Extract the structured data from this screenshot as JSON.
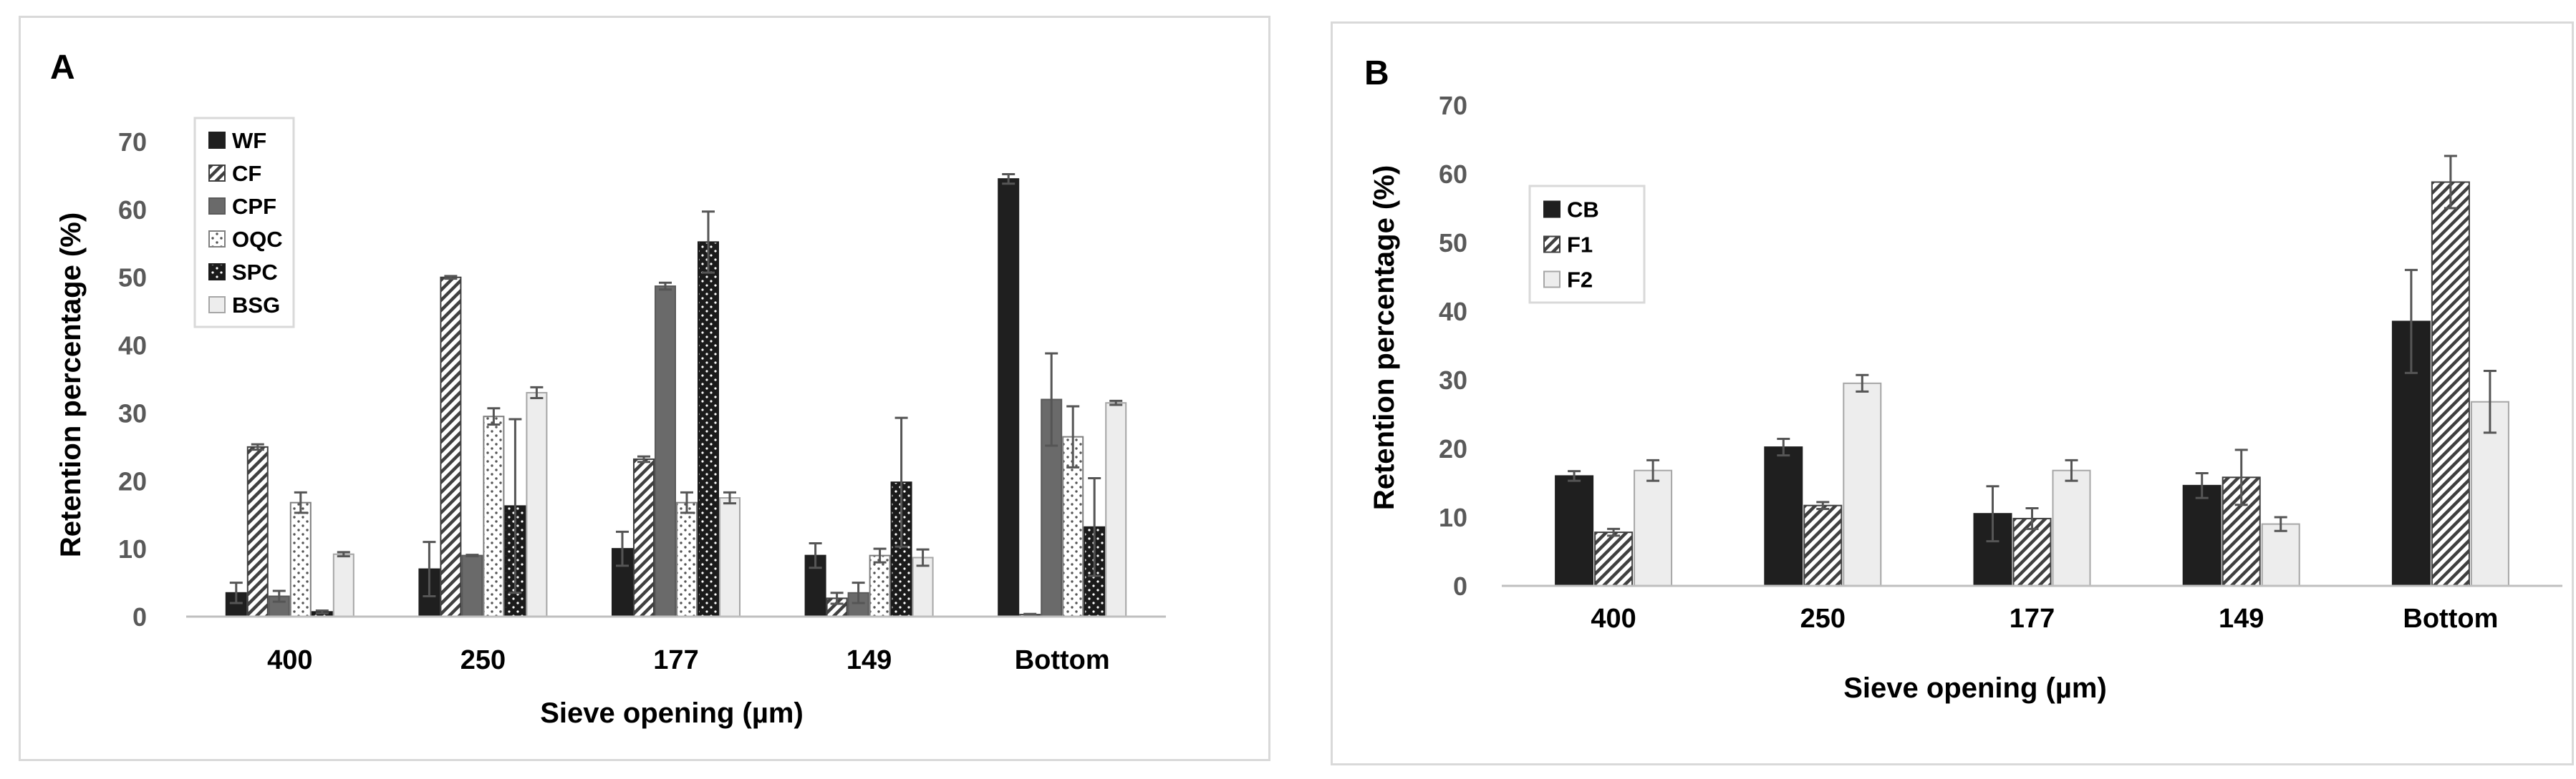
{
  "chart_data": [
    {
      "panel": "A",
      "type": "bar",
      "title": "",
      "xlabel": "Sieve opening (µm)",
      "ylabel": "Retention percentage (%)",
      "ylim": [
        0,
        70
      ],
      "yticks": [
        0,
        10,
        20,
        30,
        40,
        50,
        60,
        70
      ],
      "grid": false,
      "legend": "top-left",
      "categories": [
        "400",
        "250",
        "177",
        "149",
        "Bottom"
      ],
      "series": [
        {
          "name": "WF",
          "pattern": "solid-dark",
          "values": [
            3.5,
            7,
            10,
            9,
            64.5
          ],
          "errors": [
            1.5,
            4,
            2.5,
            1.8,
            0.7
          ]
        },
        {
          "name": "CF",
          "pattern": "diagonal",
          "values": [
            25,
            50,
            23.2,
            2.7,
            0.3
          ],
          "errors": [
            0.4,
            0.2,
            0.4,
            0.8,
            0.1
          ]
        },
        {
          "name": "CPF",
          "pattern": "solid-medium",
          "values": [
            3,
            9,
            48.7,
            3.5,
            32
          ],
          "errors": [
            0.8,
            0.1,
            0.5,
            1.5,
            6.8
          ]
        },
        {
          "name": "OQC",
          "pattern": "dotted-light",
          "values": [
            16.8,
            29.5,
            16.8,
            9,
            26.5
          ],
          "errors": [
            1.5,
            1.2,
            1.5,
            1,
            4.5
          ]
        },
        {
          "name": "SPC",
          "pattern": "dotted-dark",
          "values": [
            0.7,
            16.3,
            55.2,
            19.8,
            13.2
          ],
          "errors": [
            0.2,
            12.8,
            4.5,
            9.5,
            7.2
          ]
        },
        {
          "name": "BSG",
          "pattern": "solid-light",
          "values": [
            9.2,
            33,
            17.5,
            8.7,
            31.5
          ],
          "errors": [
            0.3,
            0.8,
            0.8,
            1.2,
            0.3
          ]
        }
      ]
    },
    {
      "panel": "B",
      "type": "bar",
      "title": "",
      "xlabel": "Sieve opening (µm)",
      "ylabel": "Retention percentage (%)",
      "ylim": [
        0,
        70
      ],
      "yticks": [
        0,
        10,
        20,
        30,
        40,
        50,
        60,
        70
      ],
      "grid": false,
      "legend": "top-left",
      "categories": [
        "400",
        "250",
        "177",
        "149",
        "Bottom"
      ],
      "series": [
        {
          "name": "CB",
          "pattern": "solid-dark",
          "values": [
            16,
            20.2,
            10.5,
            14.6,
            38.5
          ],
          "errors": [
            0.7,
            1.2,
            4,
            1.8,
            7.5
          ]
        },
        {
          "name": "F1",
          "pattern": "diagonal",
          "values": [
            7.8,
            11.7,
            9.8,
            15.8,
            58.8
          ],
          "errors": [
            0.5,
            0.5,
            1.5,
            4,
            3.8
          ]
        },
        {
          "name": "F2",
          "pattern": "solid-light",
          "values": [
            16.8,
            29.5,
            16.8,
            9,
            26.8
          ],
          "errors": [
            1.5,
            1.2,
            1.5,
            1,
            4.5
          ]
        }
      ]
    }
  ]
}
